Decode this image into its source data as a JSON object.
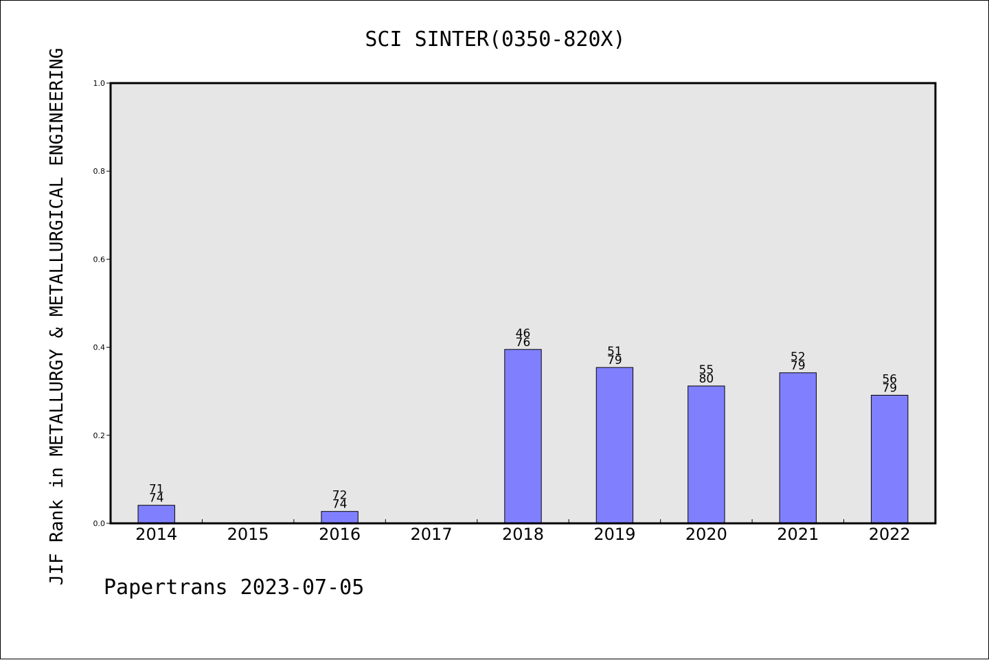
{
  "chart_data": {
    "type": "bar",
    "title": "SCI SINTER(0350-820X)",
    "ylabel": "JIF Rank in METALLURGY & METALLURGICAL ENGINEERING",
    "xlabel": "",
    "categories": [
      "2014",
      "2015",
      "2016",
      "2017",
      "2018",
      "2019",
      "2020",
      "2021",
      "2022"
    ],
    "values": [
      0.041,
      null,
      0.027,
      null,
      0.395,
      0.354,
      0.312,
      0.342,
      0.291
    ],
    "data_labels": [
      [
        "71",
        "74"
      ],
      null,
      [
        "72",
        "74"
      ],
      null,
      [
        "46",
        "76"
      ],
      [
        "51",
        "79"
      ],
      [
        "55",
        "80"
      ],
      [
        "52",
        "79"
      ],
      [
        "56",
        "79"
      ]
    ],
    "ylim": [
      0,
      1.0
    ],
    "yticks": [
      "0.0",
      "0.2",
      "0.4",
      "0.6",
      "0.8",
      "1.0"
    ],
    "grid": false,
    "colors": {
      "bar_fill": "#8080ff",
      "plot_background": "#e6e6e6"
    }
  },
  "footer": "Papertrans 2023-07-05"
}
